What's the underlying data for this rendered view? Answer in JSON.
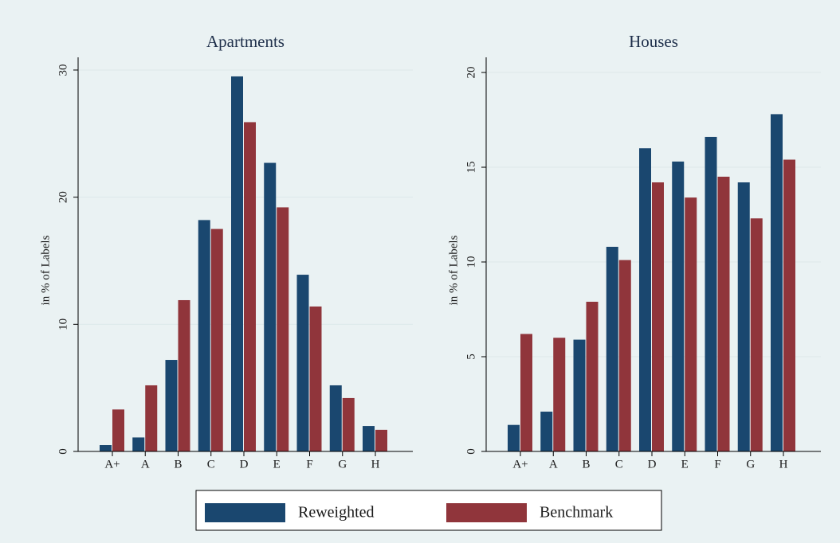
{
  "chart_data": [
    {
      "type": "bar",
      "title": "Apartments",
      "y_label": "in % of Labels",
      "categories": [
        "A+",
        "A",
        "B",
        "C",
        "D",
        "E",
        "F",
        "G",
        "H"
      ],
      "series": [
        {
          "name": "Reweighted",
          "color": "#1a476f",
          "values": [
            0.5,
            1.1,
            7.2,
            18.2,
            29.5,
            22.7,
            13.9,
            5.2,
            2.0
          ]
        },
        {
          "name": "Benchmark",
          "color": "#90353b",
          "values": [
            3.3,
            5.2,
            11.9,
            17.5,
            25.9,
            19.2,
            11.4,
            4.2,
            1.7
          ]
        }
      ],
      "ylim": [
        0,
        31
      ],
      "yticks": [
        0,
        10,
        20,
        30
      ],
      "grid": true
    },
    {
      "type": "bar",
      "title": "Houses",
      "y_label": "in % of Labels",
      "categories": [
        "A+",
        "A",
        "B",
        "C",
        "D",
        "E",
        "F",
        "G",
        "H"
      ],
      "series": [
        {
          "name": "Reweighted",
          "color": "#1a476f",
          "values": [
            1.4,
            2.1,
            5.9,
            10.8,
            16.0,
            15.3,
            16.6,
            14.2,
            17.8
          ]
        },
        {
          "name": "Benchmark",
          "color": "#90353b",
          "values": [
            6.2,
            6.0,
            7.9,
            10.1,
            14.2,
            13.4,
            14.5,
            12.3,
            15.4
          ]
        }
      ],
      "ylim": [
        0,
        20.8
      ],
      "yticks": [
        0,
        5,
        10,
        15,
        20
      ],
      "grid": true
    }
  ]
}
